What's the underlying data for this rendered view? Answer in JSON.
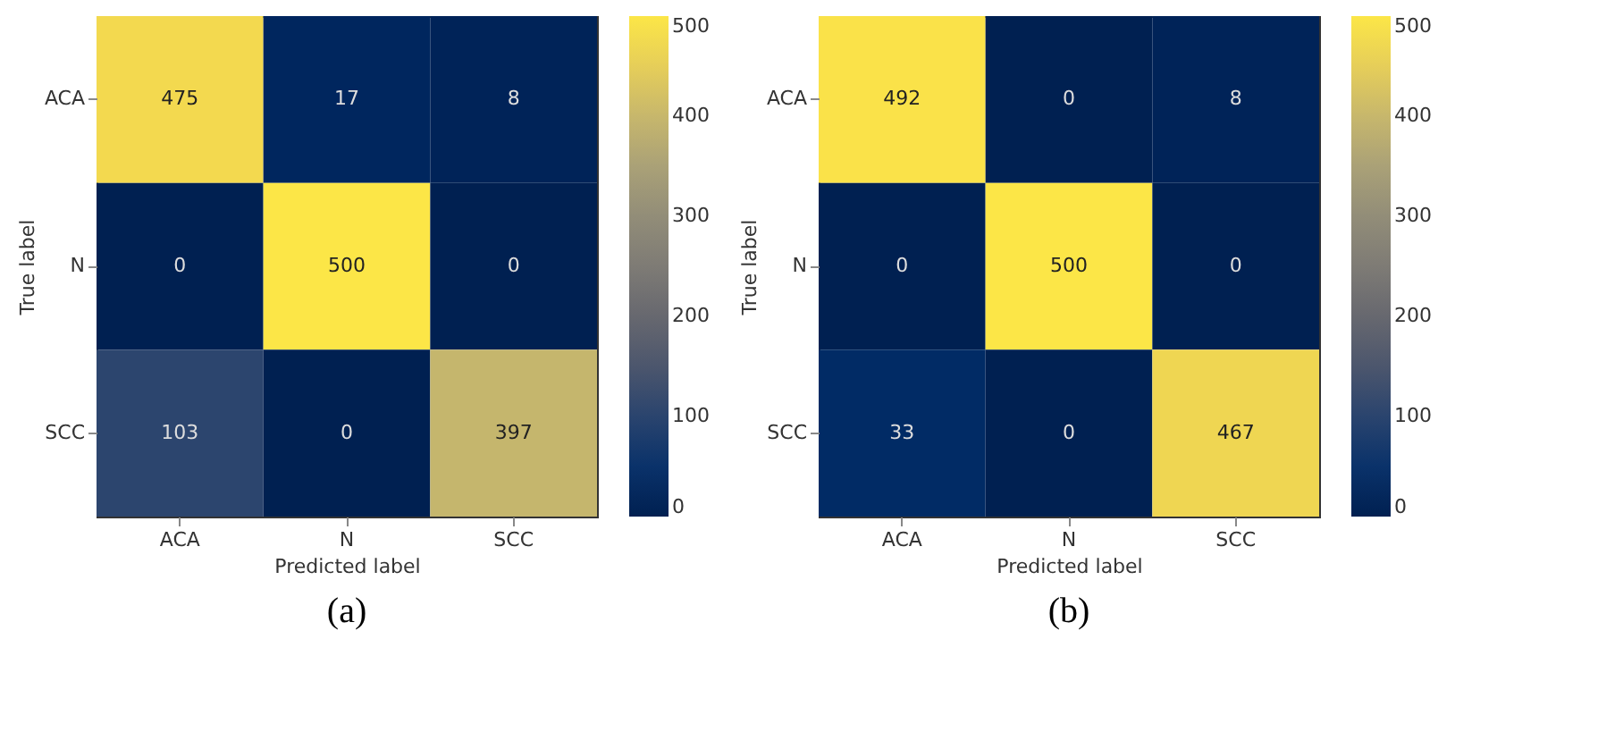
{
  "chart_data": [
    {
      "type": "heatmap",
      "title": "(a)",
      "xlabel": "Predicted label",
      "ylabel": "True label",
      "categories": [
        "ACA",
        "N",
        "SCC"
      ],
      "y_categories": [
        "ACA",
        "N",
        "SCC"
      ],
      "cells": [
        [
          475,
          17,
          8
        ],
        [
          0,
          500,
          0
        ],
        [
          103,
          0,
          397
        ]
      ],
      "clim": [
        0,
        500
      ],
      "cticks": [
        0,
        100,
        200,
        300,
        400,
        500
      ],
      "data_labels": true
    },
    {
      "type": "heatmap",
      "title": "(b)",
      "xlabel": "Predicted label",
      "ylabel": "True label",
      "categories": [
        "ACA",
        "N",
        "SCC"
      ],
      "y_categories": [
        "ACA",
        "N",
        "SCC"
      ],
      "cells": [
        [
          492,
          0,
          8
        ],
        [
          0,
          500,
          0
        ],
        [
          33,
          0,
          467
        ]
      ],
      "clim": [
        0,
        500
      ],
      "cticks": [
        0,
        100,
        200,
        300,
        400,
        500
      ],
      "data_labels": true
    }
  ]
}
